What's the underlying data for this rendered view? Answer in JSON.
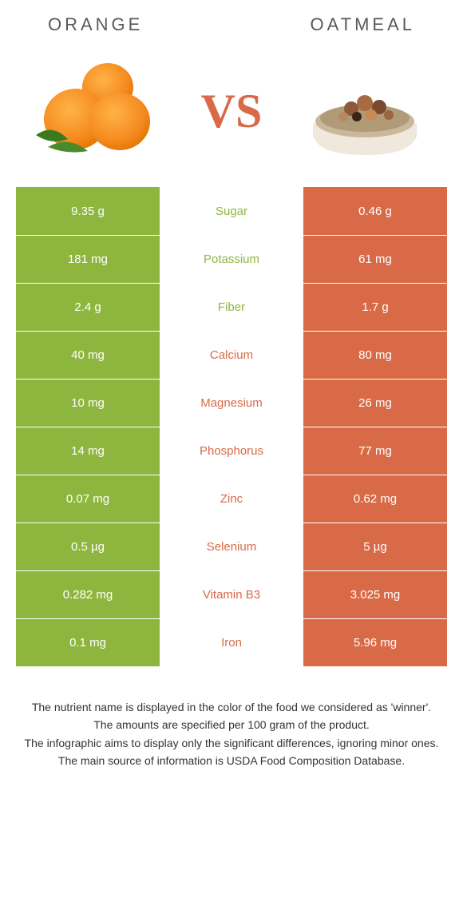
{
  "food_a": {
    "name": "ORANGE"
  },
  "food_b": {
    "name": "OATMEAL"
  },
  "vs_label": "VS",
  "colors": {
    "orange_col": "#8eb63e",
    "oatmeal_col": "#d96a47",
    "orange_label": "#8eb63e",
    "oatmeal_label": "#d96a47"
  },
  "rows": [
    {
      "label": "Sugar",
      "a": "9.35 g",
      "b": "0.46 g",
      "winner": "a"
    },
    {
      "label": "Potassium",
      "a": "181 mg",
      "b": "61 mg",
      "winner": "a"
    },
    {
      "label": "Fiber",
      "a": "2.4 g",
      "b": "1.7 g",
      "winner": "a"
    },
    {
      "label": "Calcium",
      "a": "40 mg",
      "b": "80 mg",
      "winner": "b"
    },
    {
      "label": "Magnesium",
      "a": "10 mg",
      "b": "26 mg",
      "winner": "b"
    },
    {
      "label": "Phosphorus",
      "a": "14 mg",
      "b": "77 mg",
      "winner": "b"
    },
    {
      "label": "Zinc",
      "a": "0.07 mg",
      "b": "0.62 mg",
      "winner": "b"
    },
    {
      "label": "Selenium",
      "a": "0.5 µg",
      "b": "5 µg",
      "winner": "b"
    },
    {
      "label": "Vitamin B3",
      "a": "0.282 mg",
      "b": "3.025 mg",
      "winner": "b"
    },
    {
      "label": "Iron",
      "a": "0.1 mg",
      "b": "5.96 mg",
      "winner": "b"
    }
  ],
  "footer": {
    "l1": "The nutrient name is displayed in the color of the food we considered as 'winner'.",
    "l2": "The amounts are specified per 100 gram of the product.",
    "l3": "The infographic aims to display only the significant differences, ignoring minor ones.",
    "l4": "The main source of information is USDA Food Composition Database."
  }
}
